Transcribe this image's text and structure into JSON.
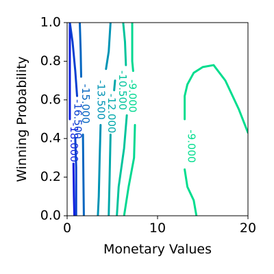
{
  "chart_data": {
    "type": "contour",
    "title": "",
    "xlabel": "Monetary Values",
    "ylabel": "Winning Probability",
    "xlim": [
      0,
      20
    ],
    "ylim": [
      0,
      1
    ],
    "x_ticks": [
      0,
      10,
      20
    ],
    "x_tick_labels": [
      "0",
      "10",
      "20"
    ],
    "y_ticks": [
      0.0,
      0.2,
      0.4,
      0.6,
      0.8,
      1.0
    ],
    "y_tick_labels": [
      "0.0",
      "0.2",
      "0.4",
      "0.6",
      "0.8",
      "1.0"
    ],
    "grid": false,
    "colormap": "winter",
    "levels": [
      {
        "value": -18.0,
        "label": "-18.000",
        "color": "#0f1ee0",
        "label_at": [
          0.7,
          0.38
        ],
        "label_rotation": 90,
        "segments": [
          [
            [
              0.3,
              1.0
            ],
            [
              0.3,
              0.8
            ],
            [
              0.3,
              0.6
            ],
            [
              0.3,
              0.5
            ]
          ],
          [
            [
              0.7,
              0.27
            ],
            [
              0.75,
              0.1
            ],
            [
              0.8,
              0.0
            ]
          ]
        ]
      },
      {
        "value": -16.5,
        "label": "-16.500",
        "color": "#0a40d0",
        "label_at": [
          1.15,
          0.5
        ],
        "label_rotation": 90,
        "segments": [
          [
            [
              0.3,
              1.0
            ],
            [
              0.6,
              0.9
            ],
            [
              0.9,
              0.75
            ],
            [
              1.1,
              0.62
            ]
          ],
          [
            [
              0.9,
              0.4
            ],
            [
              1.0,
              0.25
            ],
            [
              1.0,
              0.0
            ]
          ]
        ]
      },
      {
        "value": -15.0,
        "label": "-15.000",
        "color": "#0566c0",
        "label_at": [
          2.0,
          0.58
        ],
        "label_rotation": 90,
        "segments": [
          [
            [
              1.4,
              1.0
            ],
            [
              1.5,
              0.85
            ],
            [
              1.55,
              0.72
            ]
          ],
          [
            [
              1.75,
              0.42
            ],
            [
              1.8,
              0.2
            ],
            [
              1.85,
              0.0
            ]
          ]
        ]
      },
      {
        "value": -13.5,
        "label": "-13.500",
        "color": "#0094b5",
        "label_at": [
          3.7,
          0.6
        ],
        "label_rotation": 90,
        "segments": [
          [
            [
              4.8,
              1.0
            ],
            [
              4.6,
              0.85
            ],
            [
              4.3,
              0.76
            ]
          ],
          [
            [
              3.7,
              0.47
            ],
            [
              3.6,
              0.3
            ],
            [
              3.5,
              0.1
            ],
            [
              3.4,
              0.0
            ]
          ]
        ]
      },
      {
        "value": -12.0,
        "label": "-12.000",
        "color": "#00a8aa",
        "label_at": [
          4.9,
          0.53
        ],
        "label_rotation": 90,
        "segments": [
          [
            [
              5.3,
              0.7
            ],
            [
              5.2,
              0.65
            ]
          ],
          [
            [
              4.8,
              0.42
            ],
            [
              4.7,
              0.2
            ],
            [
              4.6,
              0.0
            ]
          ]
        ]
      },
      {
        "value": -10.5,
        "label": "-10.500",
        "color": "#00c49c",
        "label_at": [
          6.1,
          0.65
        ],
        "label_rotation": 90,
        "segments": [
          [
            [
              6.2,
              1.0
            ],
            [
              6.4,
              0.9
            ],
            [
              6.5,
              0.78
            ]
          ],
          [
            [
              6.6,
              0.52
            ],
            [
              6.3,
              0.35
            ],
            [
              5.7,
              0.15
            ],
            [
              5.5,
              0.0
            ]
          ]
        ]
      },
      {
        "value": -9.0,
        "label": "-9.000",
        "color": "#00d891",
        "label_at": [
          7.2,
          0.62
        ],
        "label_rotation": 90,
        "segments": [
          [
            [
              7.2,
              1.0
            ],
            [
              7.2,
              0.8
            ],
            [
              7.3,
              0.75
            ]
          ],
          [
            [
              7.5,
              0.47
            ],
            [
              7.4,
              0.3
            ],
            [
              6.8,
              0.15
            ],
            [
              6.3,
              0.0
            ]
          ]
        ]
      },
      {
        "value": -9.0,
        "label": "-9.000",
        "color": "#00dd8e",
        "label_at": [
          13.7,
          0.36
        ],
        "label_rotation": 90,
        "segments": [
          [
            [
              13.0,
              0.5
            ],
            [
              13.0,
              0.62
            ],
            [
              13.3,
              0.68
            ],
            [
              14.0,
              0.74
            ],
            [
              15.0,
              0.77
            ],
            [
              16.2,
              0.78
            ],
            [
              17.5,
              0.7
            ],
            [
              19.0,
              0.55
            ],
            [
              20.0,
              0.43
            ]
          ],
          [
            [
              13.0,
              0.24
            ],
            [
              13.3,
              0.15
            ],
            [
              14.0,
              0.08
            ],
            [
              14.3,
              0.0
            ]
          ]
        ]
      }
    ]
  }
}
